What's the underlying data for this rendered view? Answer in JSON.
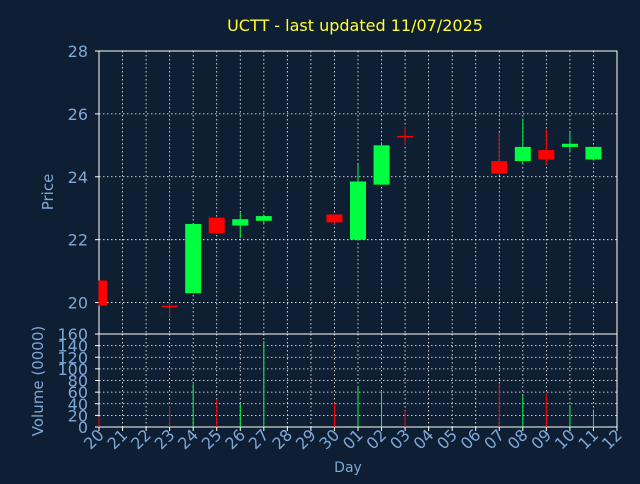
{
  "colors": {
    "background": "#0f1f33",
    "frame": "#ffffff",
    "grid": "#ffffff",
    "title": "#ffff33",
    "axis_text": "#7fa7d6",
    "up": "#00ff40",
    "down": "#ff0000"
  },
  "chart_data": [
    {
      "type": "candlestick",
      "title": "UCTT - last updated 11/07/2025",
      "ylabel": "Price",
      "ylim": [
        19,
        28
      ],
      "yticks": [
        20,
        22,
        24,
        26,
        28
      ],
      "grid": true,
      "x_tick_labels": [
        "20",
        "21",
        "22",
        "23",
        "24",
        "25",
        "26",
        "27",
        "28",
        "29",
        "30",
        "01",
        "02",
        "03",
        "04",
        "05",
        "06",
        "07",
        "08",
        "09",
        "10",
        "11",
        "12"
      ],
      "candles": [
        {
          "x": 0,
          "open": 20.7,
          "high": 20.7,
          "low": 19.9,
          "close": 19.9
        },
        {
          "x": 3,
          "open": 19.9,
          "high": 20.0,
          "low": 19.5,
          "close": 19.85
        },
        {
          "x": 4,
          "open": 20.3,
          "high": 22.5,
          "low": 20.3,
          "close": 22.5
        },
        {
          "x": 5,
          "open": 22.7,
          "high": 22.7,
          "low": 22.2,
          "close": 22.2
        },
        {
          "x": 6,
          "open": 22.45,
          "high": 22.85,
          "low": 22.05,
          "close": 22.65
        },
        {
          "x": 7,
          "open": 22.6,
          "high": 22.8,
          "low": 22.5,
          "close": 22.75
        },
        {
          "x": 10,
          "open": 22.8,
          "high": 22.8,
          "low": 22.5,
          "close": 22.55
        },
        {
          "x": 11,
          "open": 22.0,
          "high": 24.4,
          "low": 22.0,
          "close": 23.85
        },
        {
          "x": 12,
          "open": 23.75,
          "high": 25.1,
          "low": 23.75,
          "close": 25.0
        },
        {
          "x": 13,
          "open": 25.3,
          "high": 25.6,
          "low": 25.0,
          "close": 25.25
        },
        {
          "x": 17,
          "open": 24.5,
          "high": 25.4,
          "low": 24.05,
          "close": 24.1
        },
        {
          "x": 18,
          "open": 24.5,
          "high": 25.85,
          "low": 24.4,
          "close": 24.95
        },
        {
          "x": 19,
          "open": 24.85,
          "high": 25.5,
          "low": 24.4,
          "close": 24.55
        },
        {
          "x": 20,
          "open": 24.95,
          "high": 25.4,
          "low": 24.8,
          "close": 25.05
        },
        {
          "x": 21,
          "open": 24.55,
          "high": 24.95,
          "low": 24.55,
          "close": 24.95
        }
      ]
    },
    {
      "type": "bar",
      "ylabel": "Volume (0000)",
      "xlabel": "Day",
      "ylim": [
        0,
        160
      ],
      "yticks": [
        0,
        20,
        40,
        60,
        80,
        100,
        120,
        140,
        160
      ],
      "grid": true,
      "x_tick_labels": [
        "20",
        "21",
        "22",
        "23",
        "24",
        "25",
        "26",
        "27",
        "28",
        "29",
        "30",
        "01",
        "02",
        "03",
        "04",
        "05",
        "06",
        "07",
        "08",
        "09",
        "10",
        "11",
        "12"
      ],
      "bars": [
        {
          "x": 0,
          "value": 18,
          "direction": "down"
        },
        {
          "x": 3,
          "value": 36,
          "direction": "down"
        },
        {
          "x": 4,
          "value": 74,
          "direction": "up"
        },
        {
          "x": 5,
          "value": 48,
          "direction": "down"
        },
        {
          "x": 6,
          "value": 40,
          "direction": "up"
        },
        {
          "x": 7,
          "value": 148,
          "direction": "up"
        },
        {
          "x": 10,
          "value": 42,
          "direction": "down"
        },
        {
          "x": 11,
          "value": 70,
          "direction": "up"
        },
        {
          "x": 12,
          "value": 60,
          "direction": "up"
        },
        {
          "x": 13,
          "value": 28,
          "direction": "down"
        },
        {
          "x": 17,
          "value": 74,
          "direction": "down"
        },
        {
          "x": 18,
          "value": 55,
          "direction": "up"
        },
        {
          "x": 19,
          "value": 58,
          "direction": "down"
        },
        {
          "x": 20,
          "value": 38,
          "direction": "up"
        },
        {
          "x": 21,
          "value": 30,
          "direction": "up"
        }
      ]
    }
  ]
}
